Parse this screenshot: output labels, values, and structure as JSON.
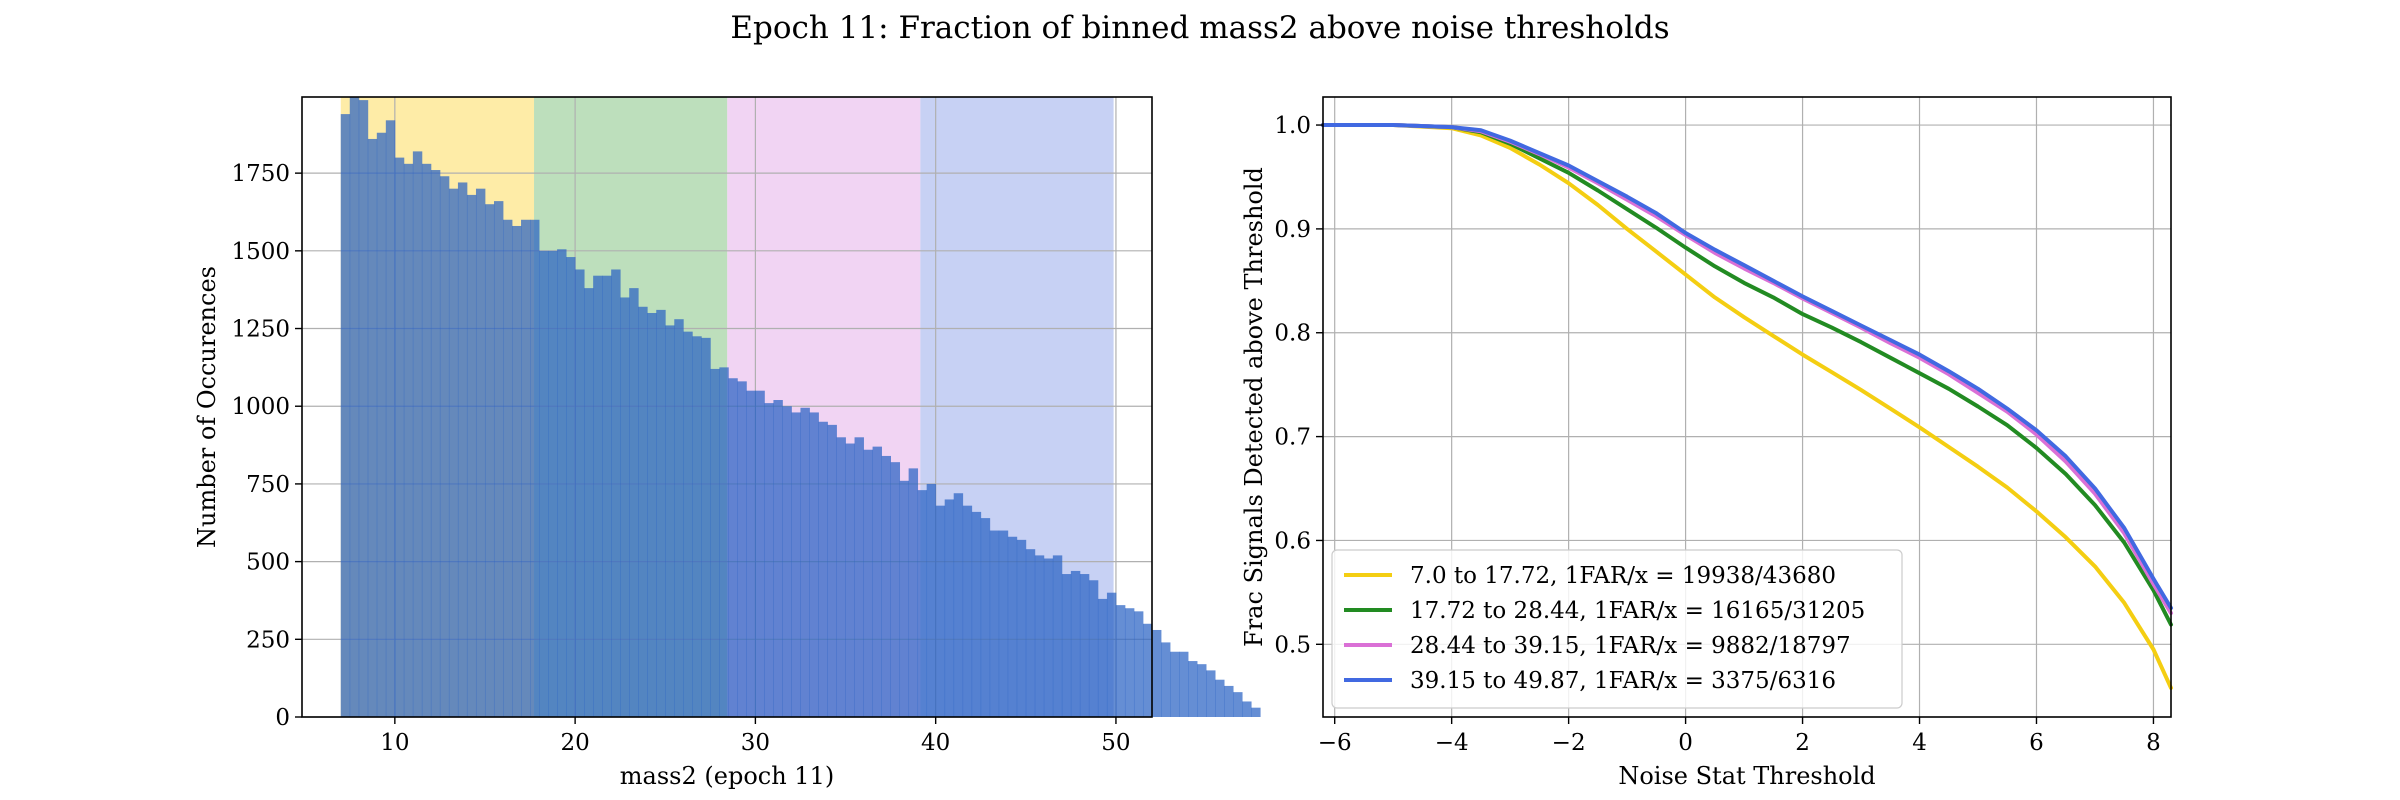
{
  "figure": {
    "title": "Epoch 11: Fraction of binned mass2 above noise thresholds"
  },
  "chart_data": [
    {
      "type": "bar",
      "subtype": "histogram",
      "xlabel": "mass2 (epoch 11)",
      "ylabel": "Number of Occurences",
      "xlim": [
        4.85,
        52.0
      ],
      "ylim": [
        0,
        1995
      ],
      "xticks": [
        10,
        20,
        30,
        40,
        50
      ],
      "yticks": [
        0,
        250,
        500,
        750,
        1000,
        1250,
        1500,
        1750
      ],
      "grid": true,
      "bar_color": "#2a62c4",
      "bin_width": 0.5,
      "bin_start": 7.0,
      "values": [
        1940,
        1995,
        1985,
        1860,
        1880,
        1920,
        1800,
        1780,
        1820,
        1780,
        1760,
        1740,
        1700,
        1720,
        1680,
        1700,
        1650,
        1660,
        1600,
        1580,
        1600,
        1600,
        1500,
        1500,
        1505,
        1480,
        1440,
        1380,
        1420,
        1420,
        1440,
        1350,
        1380,
        1320,
        1300,
        1310,
        1260,
        1280,
        1240,
        1225,
        1220,
        1120,
        1125,
        1090,
        1080,
        1050,
        1050,
        1010,
        1020,
        1000,
        980,
        995,
        980,
        950,
        940,
        900,
        880,
        900,
        860,
        870,
        840,
        820,
        760,
        800,
        730,
        750,
        680,
        700,
        720,
        680,
        660,
        640,
        600,
        600,
        580,
        570,
        540,
        520,
        510,
        520,
        460,
        470,
        460,
        440,
        380,
        400,
        360,
        350,
        340,
        300,
        280,
        240,
        210,
        210,
        180,
        170,
        150,
        120,
        100,
        80,
        50,
        30
      ],
      "bands": [
        {
          "from": 7.0,
          "to": 17.72,
          "color": "#fde68a"
        },
        {
          "from": 17.72,
          "to": 28.44,
          "color": "#a7d4a6"
        },
        {
          "from": 28.44,
          "to": 39.15,
          "color": "#ecc6ef"
        },
        {
          "from": 39.15,
          "to": 49.87,
          "color": "#b4c2f0"
        }
      ]
    },
    {
      "type": "line",
      "xlabel": "Noise Stat Threshold",
      "ylabel": "Frac Signals Detected above Threshold",
      "xlim": [
        -6.2,
        8.3
      ],
      "ylim": [
        0.43,
        1.027
      ],
      "xticks": [
        -6,
        -4,
        -2,
        0,
        2,
        4,
        6,
        8
      ],
      "xtick_labels": [
        "−6",
        "−4",
        "−2",
        "0",
        "2",
        "4",
        "6",
        "8"
      ],
      "yticks": [
        0.5,
        0.6,
        0.7,
        0.8,
        0.9,
        1.0
      ],
      "ytick_labels": [
        "0.5",
        "0.6",
        "0.7",
        "0.8",
        "0.9",
        "1.0"
      ],
      "grid": true,
      "legend_position": "lower-left",
      "x": [
        -6.2,
        -5,
        -4,
        -3.5,
        -3,
        -2.5,
        -2,
        -1.5,
        -1,
        -0.5,
        0,
        0.5,
        1,
        1.5,
        2,
        2.5,
        3,
        3.5,
        4,
        4.5,
        5,
        5.5,
        6,
        6.5,
        7,
        7.5,
        8,
        8.3
      ],
      "series": [
        {
          "name": "7.0 to 17.72, 1FAR/x = 19938/43680",
          "color": "#f4ce12",
          "values": [
            1.0,
            1.0,
            0.997,
            0.99,
            0.978,
            0.962,
            0.944,
            0.923,
            0.9,
            0.878,
            0.856,
            0.834,
            0.815,
            0.797,
            0.779,
            0.762,
            0.745,
            0.727,
            0.709,
            0.69,
            0.671,
            0.651,
            0.628,
            0.603,
            0.575,
            0.54,
            0.495,
            0.458
          ]
        },
        {
          "name": "17.72 to 28.44, 1FAR/x = 16165/31205",
          "color": "#228b22",
          "values": [
            1.0,
            1.0,
            0.998,
            0.993,
            0.982,
            0.968,
            0.954,
            0.937,
            0.919,
            0.901,
            0.882,
            0.864,
            0.848,
            0.834,
            0.818,
            0.805,
            0.791,
            0.776,
            0.761,
            0.746,
            0.729,
            0.711,
            0.689,
            0.664,
            0.634,
            0.598,
            0.552,
            0.519
          ]
        },
        {
          "name": "28.44 to 39.15, 1FAR/x = 9882/18797",
          "color": "#da70d6",
          "values": [
            1.0,
            1.0,
            0.998,
            0.994,
            0.984,
            0.972,
            0.959,
            0.944,
            0.928,
            0.912,
            0.894,
            0.877,
            0.862,
            0.848,
            0.833,
            0.819,
            0.805,
            0.79,
            0.776,
            0.76,
            0.742,
            0.724,
            0.702,
            0.676,
            0.645,
            0.607,
            0.558,
            0.53
          ]
        },
        {
          "name": "39.15 to 49.87, 1FAR/x = 3375/6316",
          "color": "#4169e1",
          "values": [
            1.0,
            1.0,
            0.998,
            0.995,
            0.985,
            0.973,
            0.961,
            0.946,
            0.931,
            0.915,
            0.896,
            0.88,
            0.865,
            0.85,
            0.835,
            0.821,
            0.807,
            0.793,
            0.779,
            0.763,
            0.746,
            0.727,
            0.706,
            0.681,
            0.65,
            0.612,
            0.563,
            0.535
          ]
        }
      ]
    }
  ]
}
